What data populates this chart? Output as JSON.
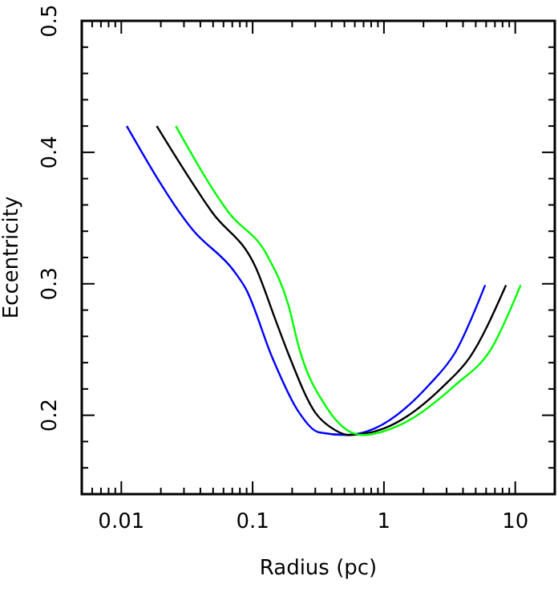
{
  "chart_data": {
    "type": "line",
    "xlabel": "Radius (pc)",
    "ylabel": "Eccentricity",
    "log": "x",
    "xlim": [
      0.005,
      20
    ],
    "ylim": [
      0.14,
      0.5
    ],
    "xticks": [
      {
        "value": 0.006,
        "label": null
      },
      {
        "value": 0.007,
        "label": null
      },
      {
        "value": 0.008,
        "label": null
      },
      {
        "value": 0.009,
        "label": null
      },
      0.01,
      {
        "value": 0.02,
        "label": null
      },
      {
        "value": 0.03,
        "label": null
      },
      {
        "value": 0.04,
        "label": null
      },
      {
        "value": 0.05,
        "label": null
      },
      {
        "value": 0.06,
        "label": null
      },
      {
        "value": 0.07,
        "label": null
      },
      {
        "value": 0.08,
        "label": null
      },
      {
        "value": 0.09,
        "label": null
      },
      0.1,
      {
        "value": 0.2,
        "label": null
      },
      {
        "value": 0.3,
        "label": null
      },
      {
        "value": 0.4,
        "label": null
      },
      {
        "value": 0.5,
        "label": null
      },
      {
        "value": 0.6,
        "label": null
      },
      {
        "value": 0.7,
        "label": null
      },
      {
        "value": 0.8,
        "label": null
      },
      {
        "value": 0.9,
        "label": null
      },
      1,
      {
        "value": 2,
        "label": null
      },
      {
        "value": 3,
        "label": null
      },
      {
        "value": 4,
        "label": null
      },
      {
        "value": 5,
        "label": null
      },
      {
        "value": 6,
        "label": null
      },
      {
        "value": 7,
        "label": null
      },
      {
        "value": 8,
        "label": null
      },
      {
        "value": 9,
        "label": null
      },
      10
    ],
    "yticks": [
      {
        "value": 0.16,
        "label": null
      },
      {
        "value": 0.18,
        "label": null
      },
      0.2,
      {
        "value": 0.22,
        "label": null
      },
      {
        "value": 0.24,
        "label": null
      },
      {
        "value": 0.26,
        "label": null
      },
      {
        "value": 0.28,
        "label": null
      },
      0.3,
      {
        "value": 0.32,
        "label": null
      },
      {
        "value": 0.34,
        "label": null
      },
      {
        "value": 0.36,
        "label": null
      },
      {
        "value": 0.38,
        "label": null
      },
      0.4,
      {
        "value": 0.42,
        "label": null
      },
      {
        "value": 0.44,
        "label": null
      },
      {
        "value": 0.46,
        "label": null
      },
      {
        "value": 0.48,
        "label": null
      },
      0.5
    ],
    "series": [
      {
        "color": "#0000ff",
        "x": [
          0.011,
          0.035,
          0.073,
          0.089,
          0.141,
          0.226,
          0.32,
          0.52,
          0.85,
          2.2,
          3.5,
          5.9
        ],
        "values": [
          0.42,
          0.341,
          0.309,
          0.296,
          0.244,
          0.202,
          0.187,
          0.185,
          0.19,
          0.223,
          0.248,
          0.299
        ]
      },
      {
        "color": "#000000",
        "x": [
          0.0186,
          0.0495,
          0.106,
          0.15,
          0.185,
          0.3,
          0.42,
          0.54,
          1.0,
          2.9,
          4.5,
          8.5
        ],
        "values": [
          0.42,
          0.354,
          0.312,
          0.272,
          0.248,
          0.202,
          0.189,
          0.185,
          0.19,
          0.223,
          0.244,
          0.299
        ]
      },
      {
        "color": "#00ff00",
        "x": [
          0.026,
          0.066,
          0.13,
          0.187,
          0.226,
          0.36,
          0.52,
          0.69,
          1.35,
          3.5,
          6.6,
          11
        ],
        "values": [
          0.42,
          0.354,
          0.321,
          0.284,
          0.251,
          0.207,
          0.189,
          0.185,
          0.193,
          0.223,
          0.251,
          0.299
        ]
      }
    ]
  }
}
